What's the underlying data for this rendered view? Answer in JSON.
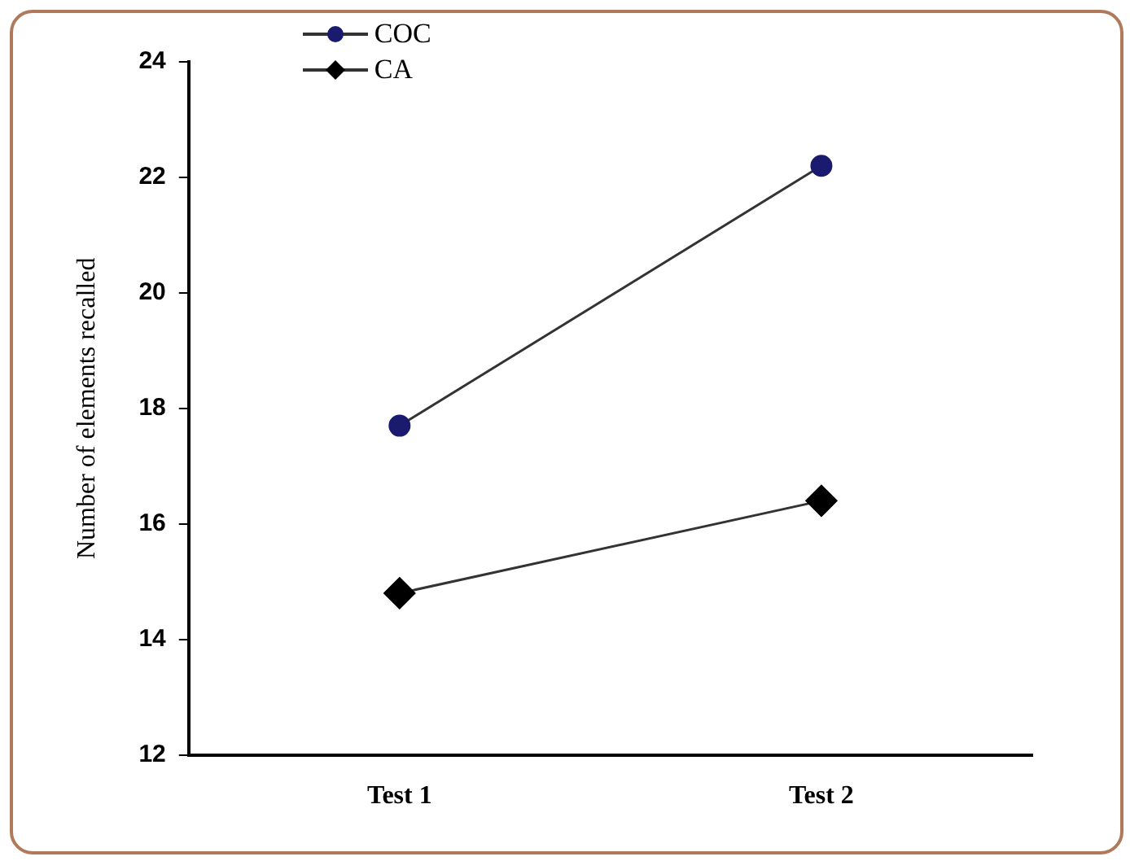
{
  "chart_data": {
    "type": "line",
    "ylabel": "Number of elements recalled",
    "categories": [
      "Test 1",
      "Test 2"
    ],
    "series": [
      {
        "name": "COC",
        "color": "#1a1a6e",
        "marker": "circle",
        "values": [
          17.7,
          22.2
        ]
      },
      {
        "name": "CA",
        "color": "#000000",
        "marker": "diamond",
        "values": [
          14.8,
          16.4
        ]
      }
    ],
    "ylim": [
      12,
      24
    ],
    "yticks": [
      12,
      14,
      16,
      18,
      20,
      22,
      24
    ],
    "grid": false,
    "legend": "top left",
    "line_style": "solid"
  }
}
